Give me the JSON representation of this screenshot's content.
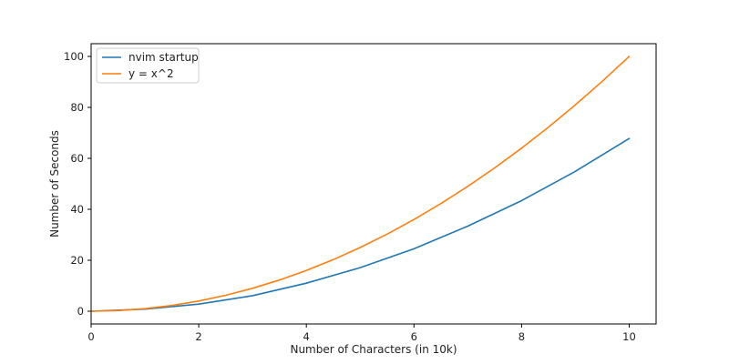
{
  "chart_data": {
    "type": "line",
    "xlabel": "Number of Characters (in 10k)",
    "ylabel": "Number of Seconds",
    "xlim": [
      0,
      10.5
    ],
    "ylim": [
      -5,
      105
    ],
    "xticks": [
      0,
      2,
      4,
      6,
      8,
      10
    ],
    "yticks": [
      0,
      20,
      40,
      60,
      80,
      100
    ],
    "grid": false,
    "legend_position": "top-left",
    "series": [
      {
        "name": "nvim startup",
        "color": "#1f77b4",
        "x": [
          0,
          1,
          2,
          3,
          4,
          5,
          6,
          7,
          8,
          9,
          10
        ],
        "y": [
          0,
          0.8,
          2.8,
          6.1,
          11.0,
          17.1,
          24.5,
          33.4,
          43.4,
          54.9,
          67.8
        ]
      },
      {
        "name": "y = x^2",
        "color": "#ff7f0e",
        "x": [
          0,
          0.5,
          1,
          1.5,
          2,
          2.5,
          3,
          3.5,
          4,
          4.5,
          5,
          5.5,
          6,
          6.5,
          7,
          7.5,
          8,
          8.5,
          9,
          9.5,
          10
        ],
        "y": [
          0,
          0.25,
          1,
          2.25,
          4,
          6.25,
          9,
          12.25,
          16,
          20.25,
          25,
          30.25,
          36,
          42.25,
          49,
          56.25,
          64,
          72.25,
          81,
          90.25,
          100
        ]
      }
    ]
  }
}
